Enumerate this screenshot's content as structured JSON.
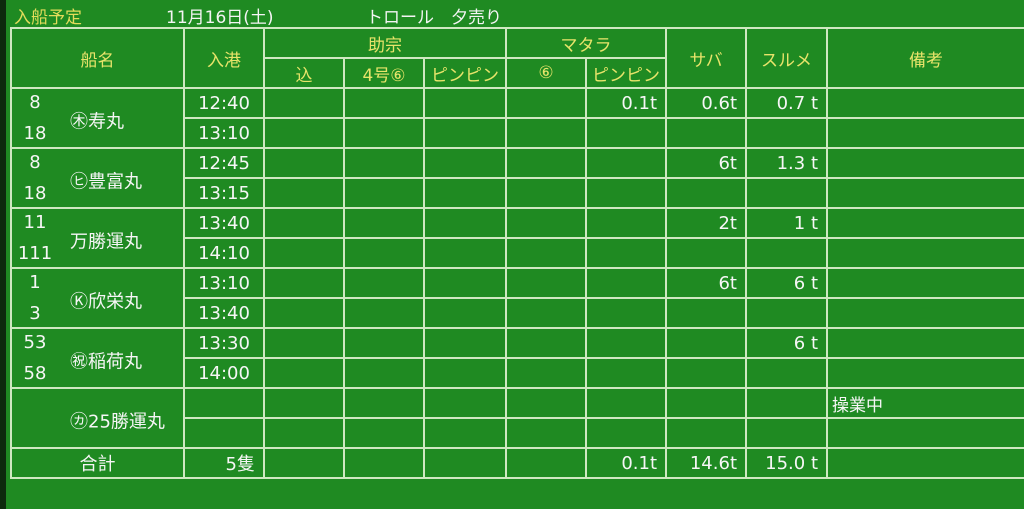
{
  "title": {
    "label": "入船予定",
    "date": "11月16日(土)",
    "kind": "トロール　夕売り"
  },
  "header": {
    "ship": "船名",
    "arrival": "入港",
    "sukesou": "助宗",
    "matara": "マタラ",
    "saba": "サバ",
    "surume": "スルメ",
    "remarks": "備考",
    "sub": [
      "込",
      "4号⑥",
      "ピンピン",
      "⑥",
      "ピンピン"
    ]
  },
  "ships": [
    {
      "n1": "8",
      "n2": "18",
      "name": "㊍寿丸",
      "times": [
        "12:40",
        "13:10"
      ],
      "values": [
        "",
        "",
        "",
        "",
        "0.1t",
        "0.6t",
        "0.7 t"
      ],
      "remark": ""
    },
    {
      "n1": "8",
      "n2": "18",
      "name": "㋪豊富丸",
      "times": [
        "12:45",
        "13:15"
      ],
      "values": [
        "",
        "",
        "",
        "",
        "",
        "6t",
        "1.3 t"
      ],
      "remark": ""
    },
    {
      "n1": "11",
      "n2": "111",
      "name": "万勝運丸",
      "times": [
        "13:40",
        "14:10"
      ],
      "values": [
        "",
        "",
        "",
        "",
        "",
        "2t",
        "1 t"
      ],
      "remark": ""
    },
    {
      "n1": "1",
      "n2": "3",
      "name": "Ⓚ欣栄丸",
      "times": [
        "13:10",
        "13:40"
      ],
      "values": [
        "",
        "",
        "",
        "",
        "",
        "6t",
        "6 t"
      ],
      "remark": ""
    },
    {
      "n1": "53",
      "n2": "58",
      "name": "㊗稲荷丸",
      "times": [
        "13:30",
        "14:00"
      ],
      "values": [
        "",
        "",
        "",
        "",
        "",
        "",
        "6 t"
      ],
      "remark": ""
    },
    {
      "n1": "",
      "n2": "",
      "name": "㋕25勝運丸",
      "times": [
        "",
        ""
      ],
      "values": [
        "",
        "",
        "",
        "",
        "",
        "",
        ""
      ],
      "remark": "操業中"
    }
  ],
  "total": {
    "label": "合計",
    "count": "5隻",
    "values": [
      "",
      "",
      "",
      "",
      "0.1t",
      "14.6t",
      "15.0 t"
    ],
    "remark": ""
  },
  "colors": {
    "background": "#1f8a22",
    "header_text": "#e8e46a",
    "grid": "#cfe8c2",
    "text": "#f6f6f6"
  }
}
